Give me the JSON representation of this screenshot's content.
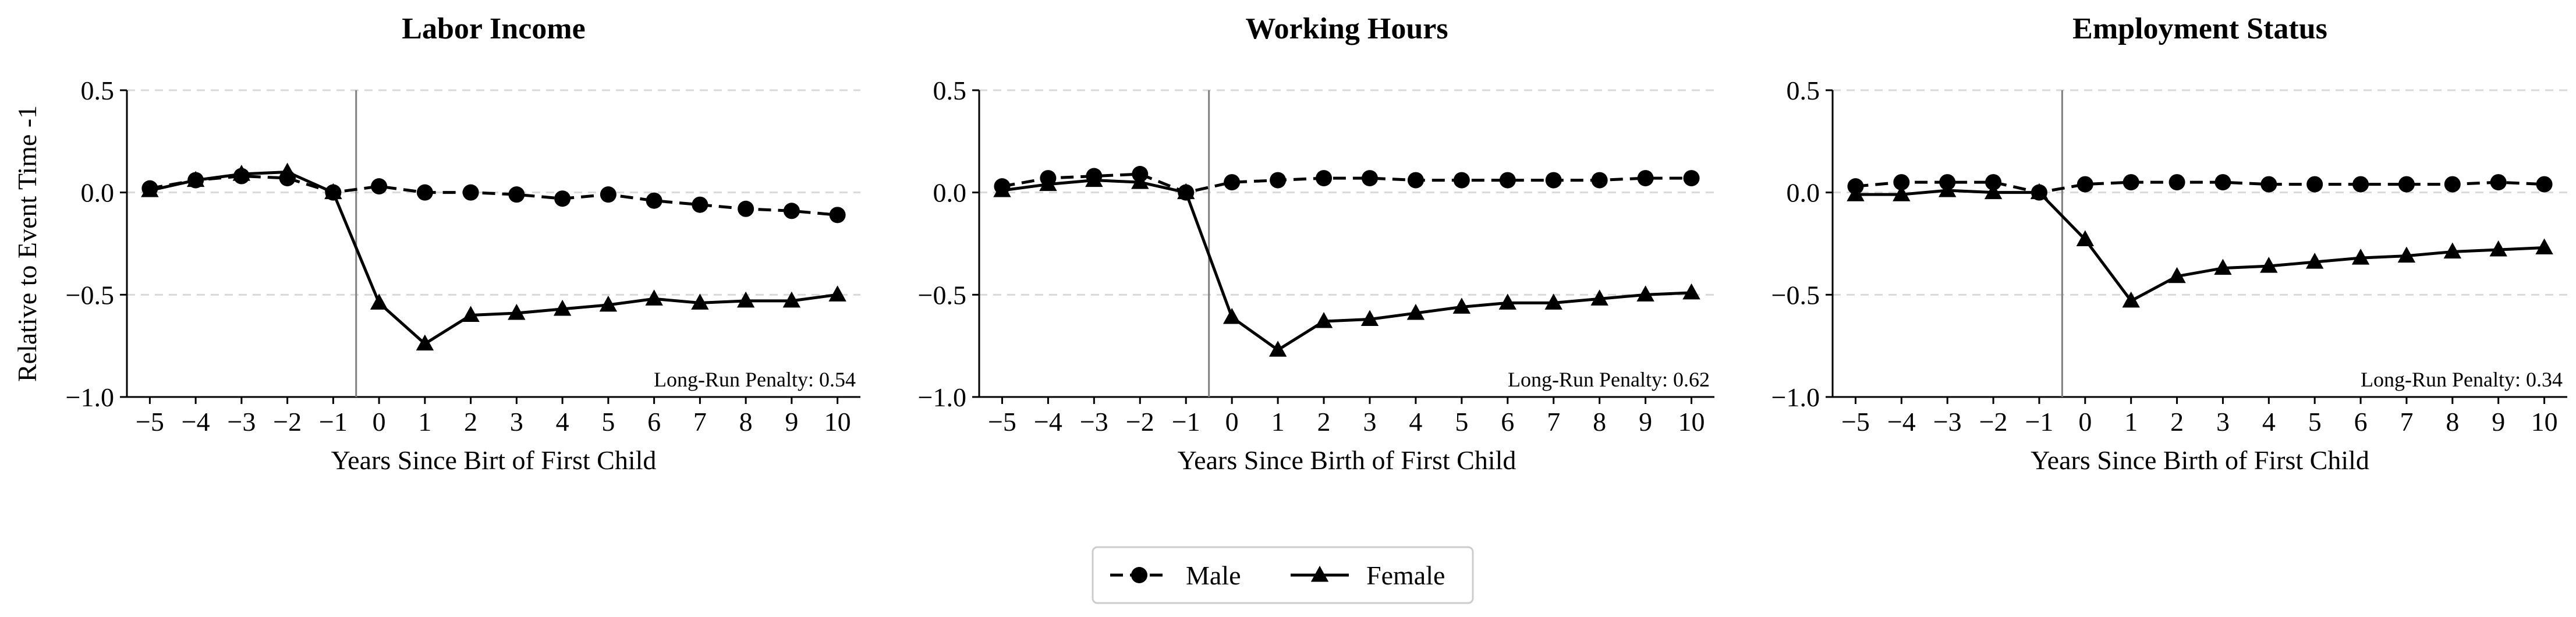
{
  "chart_data": [
    {
      "type": "line",
      "title": "Labor Income",
      "xlabel": "Years Since Birt of First Child",
      "ylabel": "Relative to Event Time -1",
      "x": [
        -5,
        -4,
        -3,
        -2,
        -1,
        0,
        1,
        2,
        3,
        4,
        5,
        6,
        7,
        8,
        9,
        10
      ],
      "ylim": [
        -1.0,
        0.5
      ],
      "yticks": [
        0.5,
        0.0,
        -0.5,
        -1.0
      ],
      "grid": "horizontal dashed",
      "event_line_x": -0.5,
      "annotation": "Long-Run Penalty: 0.54",
      "series": [
        {
          "name": "Male",
          "marker": "circle",
          "linestyle": "dashed",
          "values": [
            0.02,
            0.06,
            0.08,
            0.07,
            0.0,
            0.03,
            0.0,
            0.0,
            -0.01,
            -0.03,
            -0.01,
            -0.04,
            -0.06,
            -0.08,
            -0.09,
            -0.11
          ]
        },
        {
          "name": "Female",
          "marker": "triangle",
          "linestyle": "solid",
          "values": [
            0.01,
            0.06,
            0.09,
            0.1,
            0.0,
            -0.54,
            -0.74,
            -0.6,
            -0.59,
            -0.57,
            -0.55,
            -0.52,
            -0.54,
            -0.53,
            -0.53,
            -0.5
          ]
        }
      ]
    },
    {
      "type": "line",
      "title": "Working Hours",
      "xlabel": "Years Since Birth of First Child",
      "ylabel": "",
      "x": [
        -5,
        -4,
        -3,
        -2,
        -1,
        0,
        1,
        2,
        3,
        4,
        5,
        6,
        7,
        8,
        9,
        10
      ],
      "ylim": [
        -1.0,
        0.5
      ],
      "yticks": [
        0.5,
        0.0,
        -0.5,
        -1.0
      ],
      "grid": "horizontal dashed",
      "event_line_x": -0.5,
      "annotation": "Long-Run Penalty: 0.62",
      "series": [
        {
          "name": "Male",
          "marker": "circle",
          "linestyle": "dashed",
          "values": [
            0.03,
            0.07,
            0.08,
            0.09,
            0.0,
            0.05,
            0.06,
            0.07,
            0.07,
            0.06,
            0.06,
            0.06,
            0.06,
            0.06,
            0.07,
            0.07
          ]
        },
        {
          "name": "Female",
          "marker": "triangle",
          "linestyle": "solid",
          "values": [
            0.01,
            0.04,
            0.06,
            0.05,
            0.0,
            -0.61,
            -0.77,
            -0.63,
            -0.62,
            -0.59,
            -0.56,
            -0.54,
            -0.54,
            -0.52,
            -0.5,
            -0.49
          ]
        }
      ]
    },
    {
      "type": "line",
      "title": "Employment Status",
      "xlabel": "Years Since Birth of First Child",
      "ylabel": "",
      "x": [
        -5,
        -4,
        -3,
        -2,
        -1,
        0,
        1,
        2,
        3,
        4,
        5,
        6,
        7,
        8,
        9,
        10
      ],
      "ylim": [
        -1.0,
        0.5
      ],
      "yticks": [
        0.5,
        0.0,
        -0.5,
        -1.0
      ],
      "grid": "horizontal dashed",
      "event_line_x": -0.5,
      "annotation": "Long-Run Penalty: 0.34",
      "series": [
        {
          "name": "Male",
          "marker": "circle",
          "linestyle": "dashed",
          "values": [
            0.03,
            0.05,
            0.05,
            0.05,
            0.0,
            0.04,
            0.05,
            0.05,
            0.05,
            0.04,
            0.04,
            0.04,
            0.04,
            0.04,
            0.05,
            0.04
          ]
        },
        {
          "name": "Female",
          "marker": "triangle",
          "linestyle": "solid",
          "values": [
            -0.01,
            -0.01,
            0.01,
            0.0,
            0.0,
            -0.23,
            -0.53,
            -0.41,
            -0.37,
            -0.36,
            -0.34,
            -0.32,
            -0.31,
            -0.29,
            -0.28,
            -0.27
          ]
        }
      ]
    }
  ],
  "legend": {
    "position": "bottom-center",
    "items": [
      {
        "label": "Male",
        "marker": "circle",
        "linestyle": "dashed"
      },
      {
        "label": "Female",
        "marker": "triangle",
        "linestyle": "solid"
      }
    ]
  },
  "colors": {
    "line": "#000000",
    "grid": "#d9d9d9",
    "event_line": "#808080",
    "legend_border": "#cccccc"
  }
}
